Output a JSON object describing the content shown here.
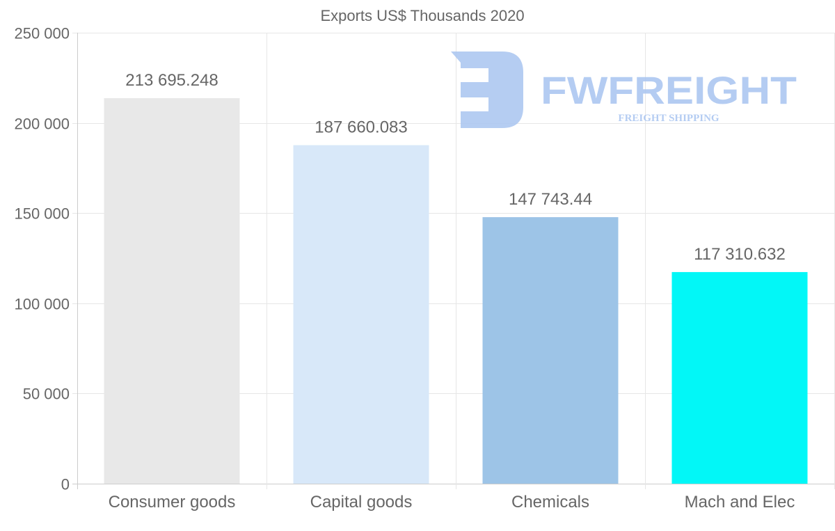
{
  "chart_data": {
    "type": "bar",
    "title": "Exports US$ Thousands 2020",
    "xlabel": "",
    "ylabel": "",
    "ylim": [
      0,
      250000
    ],
    "yticks": [
      0,
      50000,
      100000,
      150000,
      200000,
      250000
    ],
    "ytick_labels": [
      "0",
      "50 000",
      "100 000",
      "150 000",
      "200 000",
      "250 000"
    ],
    "categories": [
      "Consumer goods",
      "Capital goods",
      "Chemicals",
      "Mach and Elec"
    ],
    "values": [
      213695.248,
      187660.083,
      147743.44,
      117310.632
    ],
    "data_labels": [
      "213 695.248",
      "187 660.083",
      "147 743.44",
      "117 310.632"
    ],
    "colors": [
      "#e8e8e8",
      "#d8e8f9",
      "#9dc4e7",
      "#02f7f7"
    ],
    "grid": true,
    "legend": "none"
  },
  "watermark": {
    "brand": "FWFREIGHT",
    "tagline": "FREIGHT SHIPPING",
    "color": "#a8c4f0"
  }
}
